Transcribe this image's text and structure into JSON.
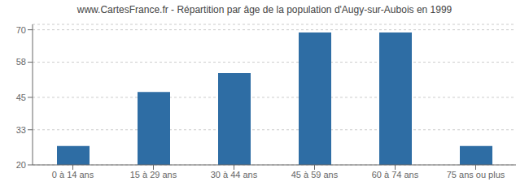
{
  "chart_data": {
    "type": "bar",
    "title": "www.CartesFrance.fr - Répartition par âge de la population d'Augy-sur-Aubois en 1999",
    "categories": [
      "0 à 14 ans",
      "15 à 29 ans",
      "30 à 44 ans",
      "45 à 59 ans",
      "60 à 74 ans",
      "75 ans ou plus"
    ],
    "values": [
      27,
      47,
      54,
      69,
      69,
      27
    ],
    "color": "#2e6da4",
    "ylim": [
      20,
      72
    ],
    "yticks": [
      20,
      33,
      45,
      58,
      70
    ],
    "grid": true
  }
}
